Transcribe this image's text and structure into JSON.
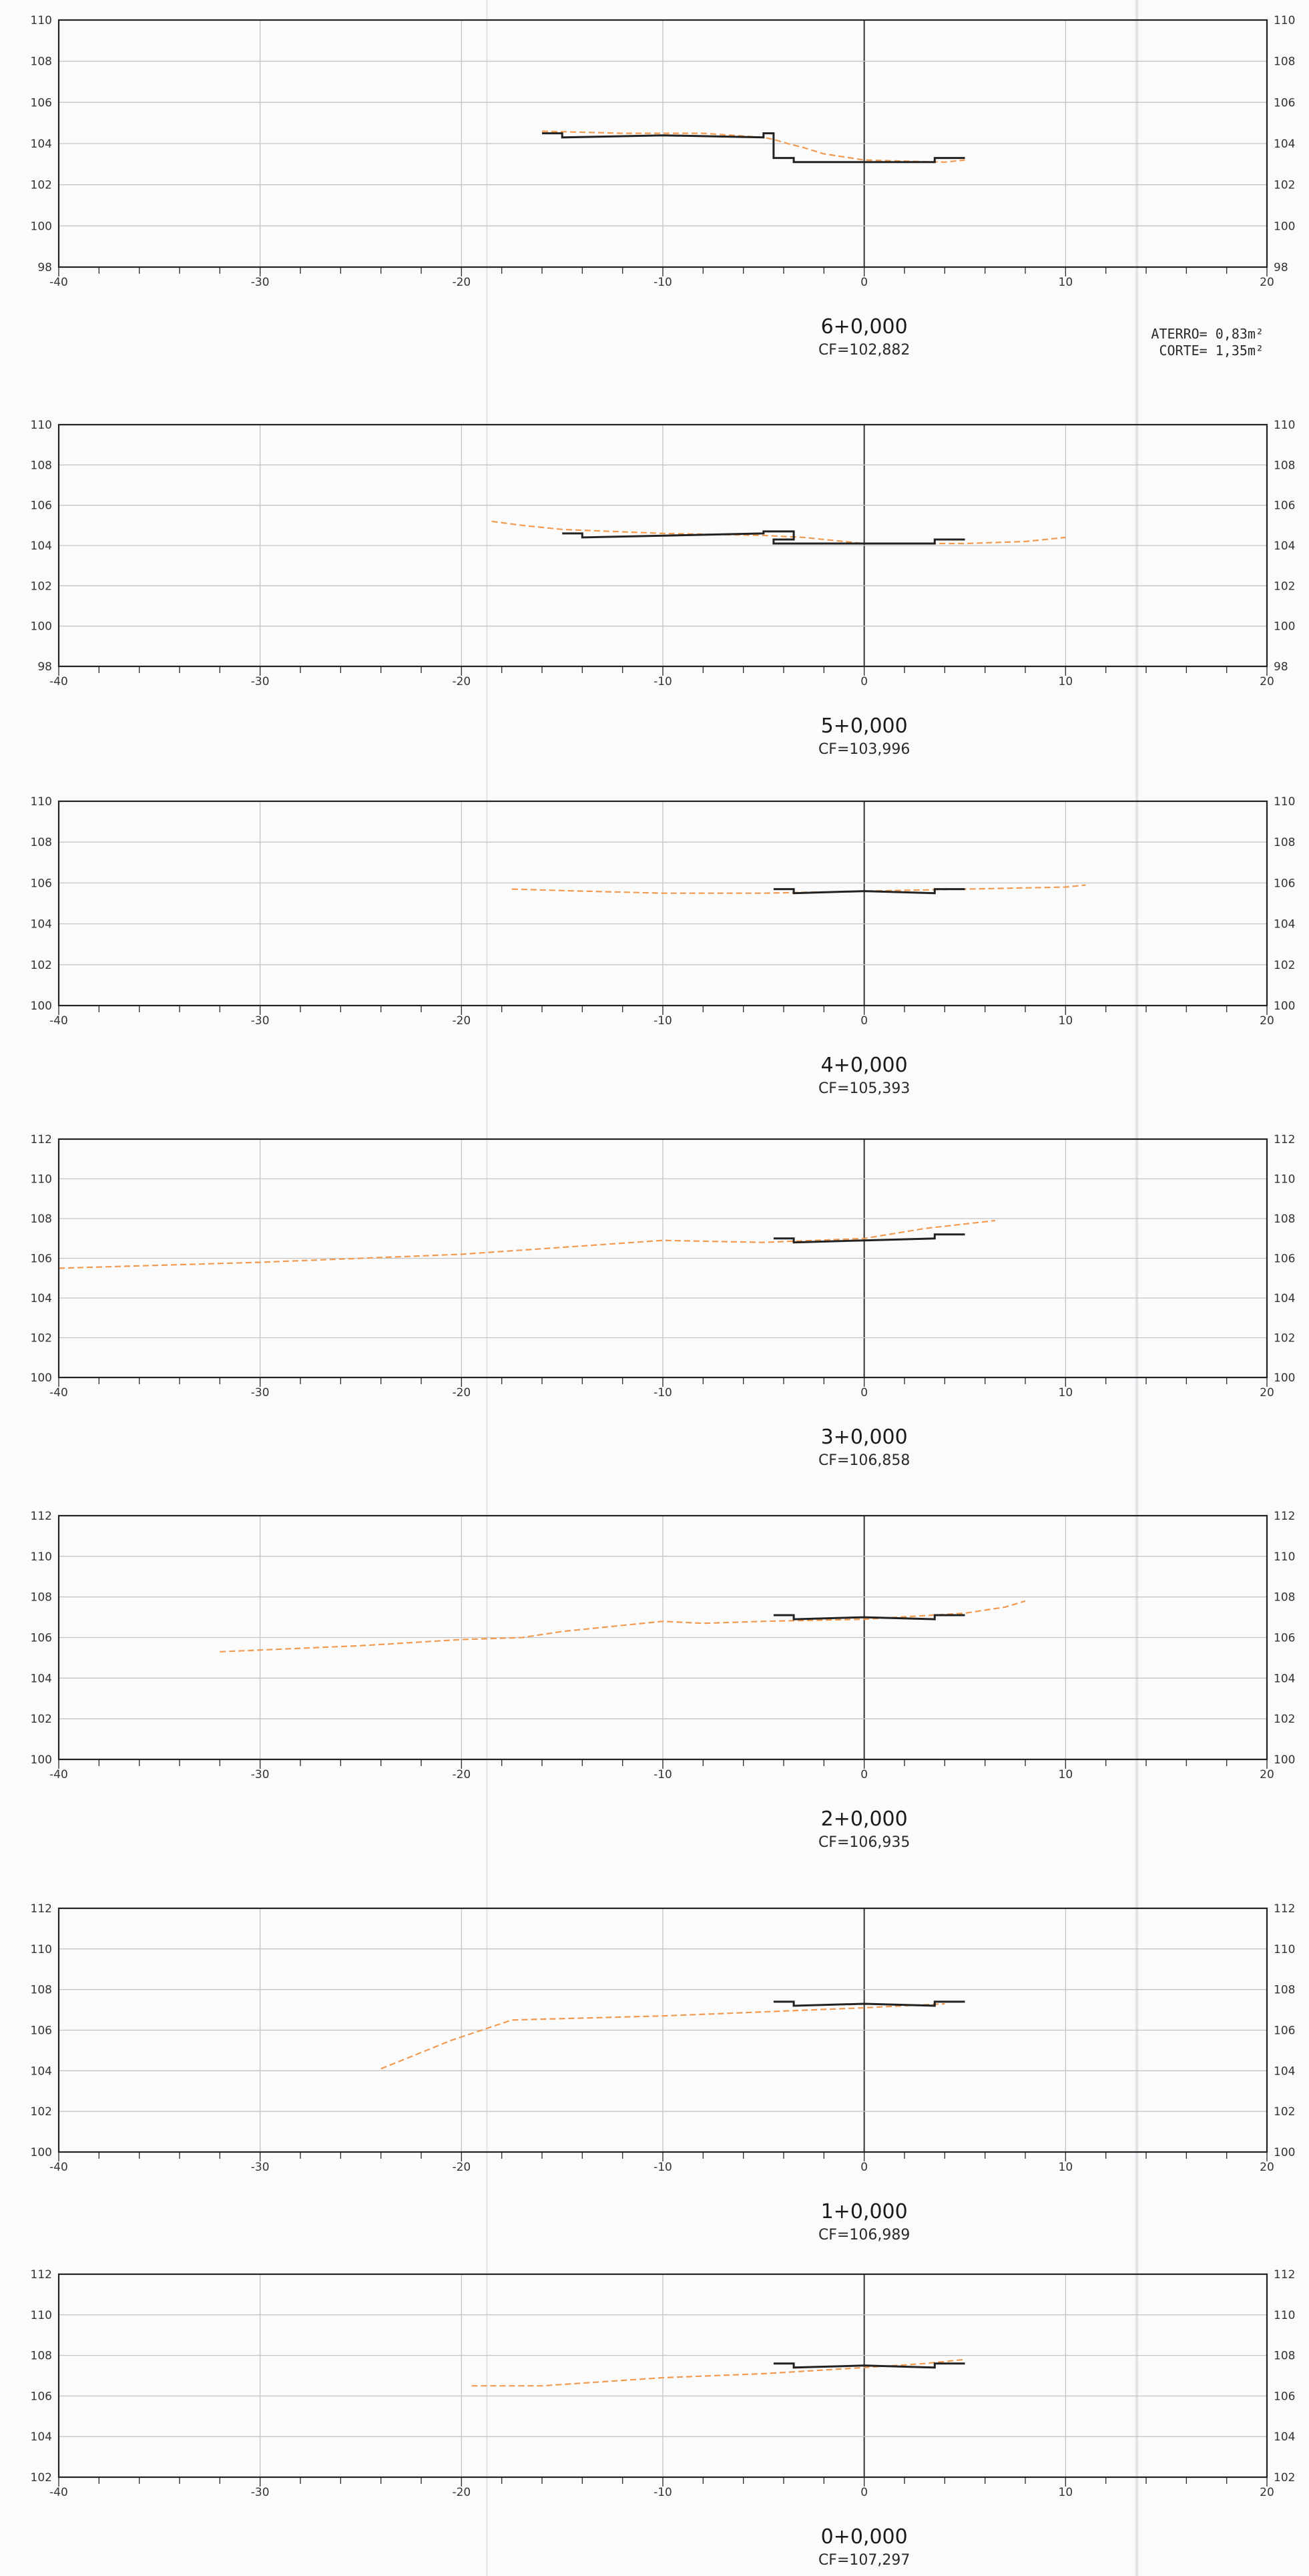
{
  "chart_data": [
    {
      "type": "line",
      "title": "6+0,000",
      "subtitle": "CF=102,882",
      "xlim": [
        -40,
        20
      ],
      "ylim": [
        98,
        110
      ],
      "x_ticks": [
        -40,
        -30,
        -20,
        -10,
        0,
        10,
        20
      ],
      "y_ticks": [
        98,
        100,
        102,
        104,
        106,
        108,
        110
      ],
      "grid": true,
      "annotations": [
        {
          "label": "ATERRO=",
          "value": "0,83m²"
        },
        {
          "label": "CORTE=",
          "value": "1,35m²"
        }
      ],
      "series": [
        {
          "style": "dashed-orange",
          "x": [
            -16,
            -12,
            -8,
            -5,
            -4.5,
            -3.8,
            -3,
            -2,
            0,
            4,
            5
          ],
          "y": [
            104.6,
            104.5,
            104.5,
            104.3,
            104.2,
            104.0,
            103.8,
            103.5,
            103.2,
            103.1,
            103.2
          ]
        },
        {
          "style": "solid-black",
          "x": [
            -16,
            -15,
            -15,
            -10,
            -5,
            -5,
            -4.5,
            -4.5,
            -3.5,
            -3.5,
            3.5,
            3.5,
            5
          ],
          "y": [
            104.5,
            104.5,
            104.3,
            104.4,
            104.3,
            104.5,
            104.5,
            103.3,
            103.3,
            103.1,
            103.1,
            103.3,
            103.3
          ]
        }
      ]
    },
    {
      "type": "line",
      "title": "5+0,000",
      "subtitle": "CF=103,996",
      "xlim": [
        -40,
        20
      ],
      "ylim": [
        98,
        110
      ],
      "x_ticks": [
        -40,
        -30,
        -20,
        -10,
        0,
        10,
        20
      ],
      "y_ticks": [
        98,
        100,
        102,
        104,
        106,
        108,
        110
      ],
      "grid": true,
      "series": [
        {
          "style": "dashed-orange",
          "x": [
            -18.5,
            -17,
            -15,
            -10,
            -5,
            -3,
            0,
            3,
            5,
            8,
            10
          ],
          "y": [
            105.2,
            105.0,
            104.8,
            104.6,
            104.5,
            104.4,
            104.1,
            104.1,
            104.1,
            104.2,
            104.4
          ]
        },
        {
          "style": "solid-black",
          "x": [
            -15,
            -14,
            -14,
            -5,
            -5,
            -3.5,
            -3.5,
            -4.5,
            -4.5,
            3.5,
            3.5,
            5
          ],
          "y": [
            104.6,
            104.6,
            104.4,
            104.6,
            104.7,
            104.7,
            104.3,
            104.3,
            104.1,
            104.1,
            104.3,
            104.3
          ]
        }
      ]
    },
    {
      "type": "line",
      "title": "4+0,000",
      "subtitle": "CF=105,393",
      "xlim": [
        -40,
        20
      ],
      "ylim": [
        100,
        110
      ],
      "x_ticks": [
        -40,
        -30,
        -20,
        -10,
        0,
        10,
        20
      ],
      "y_ticks": [
        100,
        102,
        104,
        106,
        108,
        110
      ],
      "grid": true,
      "series": [
        {
          "style": "dashed-orange",
          "x": [
            -17.5,
            -14,
            -10,
            -5,
            0,
            5,
            10,
            11
          ],
          "y": [
            105.7,
            105.6,
            105.5,
            105.5,
            105.6,
            105.7,
            105.8,
            105.9
          ]
        },
        {
          "style": "solid-black",
          "x": [
            -4.5,
            -3.5,
            -3.5,
            0,
            3.5,
            3.5,
            5
          ],
          "y": [
            105.7,
            105.7,
            105.5,
            105.6,
            105.5,
            105.7,
            105.7
          ]
        }
      ]
    },
    {
      "type": "line",
      "title": "3+0,000",
      "subtitle": "CF=106,858",
      "xlim": [
        -40,
        20
      ],
      "ylim": [
        100,
        112
      ],
      "x_ticks": [
        -40,
        -30,
        -20,
        -10,
        0,
        10,
        20
      ],
      "y_ticks": [
        100,
        102,
        104,
        106,
        108,
        110,
        112
      ],
      "grid": true,
      "series": [
        {
          "style": "dashed-orange",
          "x": [
            -40,
            -30,
            -20,
            -10,
            -5,
            0,
            3,
            6.5
          ],
          "y": [
            105.5,
            105.8,
            106.2,
            106.9,
            106.8,
            107.0,
            107.5,
            107.9
          ]
        },
        {
          "style": "solid-black",
          "x": [
            -4.5,
            -3.5,
            -3.5,
            0,
            3.5,
            3.5,
            5
          ],
          "y": [
            107.0,
            107.0,
            106.8,
            106.9,
            107.0,
            107.2,
            107.2
          ]
        }
      ]
    },
    {
      "type": "line",
      "title": "2+0,000",
      "subtitle": "CF=106,935",
      "xlim": [
        -40,
        20
      ],
      "ylim": [
        100,
        112
      ],
      "x_ticks": [
        -40,
        -30,
        -20,
        -10,
        0,
        10,
        20
      ],
      "y_ticks": [
        100,
        102,
        104,
        106,
        108,
        110,
        112
      ],
      "grid": true,
      "series": [
        {
          "style": "dashed-orange",
          "x": [
            -32,
            -25,
            -20,
            -17,
            -15,
            -10,
            -8,
            -5,
            0,
            5,
            7,
            8
          ],
          "y": [
            105.3,
            105.6,
            105.9,
            106.0,
            106.3,
            106.8,
            106.7,
            106.8,
            106.9,
            107.2,
            107.5,
            107.8
          ]
        },
        {
          "style": "solid-black",
          "x": [
            -4.5,
            -3.5,
            -3.5,
            0,
            3.5,
            3.5,
            5
          ],
          "y": [
            107.1,
            107.1,
            106.9,
            107.0,
            106.9,
            107.1,
            107.1
          ]
        }
      ]
    },
    {
      "type": "line",
      "title": "1+0,000",
      "subtitle": "CF=106,989",
      "xlim": [
        -40,
        20
      ],
      "ylim": [
        100,
        112
      ],
      "x_ticks": [
        -40,
        -30,
        -20,
        -10,
        0,
        10,
        20
      ],
      "y_ticks": [
        100,
        102,
        104,
        106,
        108,
        110,
        112
      ],
      "grid": true,
      "series": [
        {
          "style": "dashed-orange",
          "x": [
            -24,
            -20.5,
            -17.5,
            -10,
            -5,
            0,
            4
          ],
          "y": [
            104.1,
            105.5,
            106.5,
            106.7,
            106.9,
            107.1,
            107.3
          ]
        },
        {
          "style": "solid-black",
          "x": [
            -4.5,
            -3.5,
            -3.5,
            0,
            3.5,
            3.5,
            5
          ],
          "y": [
            107.4,
            107.4,
            107.2,
            107.3,
            107.2,
            107.4,
            107.4
          ]
        }
      ]
    },
    {
      "type": "line",
      "title": "0+0,000",
      "subtitle": "CF=107,297",
      "xlim": [
        -40,
        20
      ],
      "ylim": [
        102,
        112
      ],
      "x_ticks": [
        -40,
        -30,
        -20,
        -10,
        0,
        10,
        20
      ],
      "y_ticks": [
        102,
        104,
        106,
        108,
        110,
        112
      ],
      "grid": true,
      "series": [
        {
          "style": "dashed-orange",
          "x": [
            -19.5,
            -16,
            -10,
            -5,
            0,
            3,
            5
          ],
          "y": [
            106.5,
            106.5,
            106.9,
            107.1,
            107.4,
            107.6,
            107.8
          ]
        },
        {
          "style": "solid-black",
          "x": [
            -4.5,
            -3.5,
            -3.5,
            0,
            3.5,
            3.5,
            5
          ],
          "y": [
            107.6,
            107.6,
            107.4,
            107.5,
            107.4,
            107.6,
            107.6
          ]
        }
      ]
    }
  ],
  "colors": {
    "ground_line": "#f19a50",
    "design_line": "#222222",
    "grid": "#c4c4c4",
    "frame": "#222222"
  }
}
